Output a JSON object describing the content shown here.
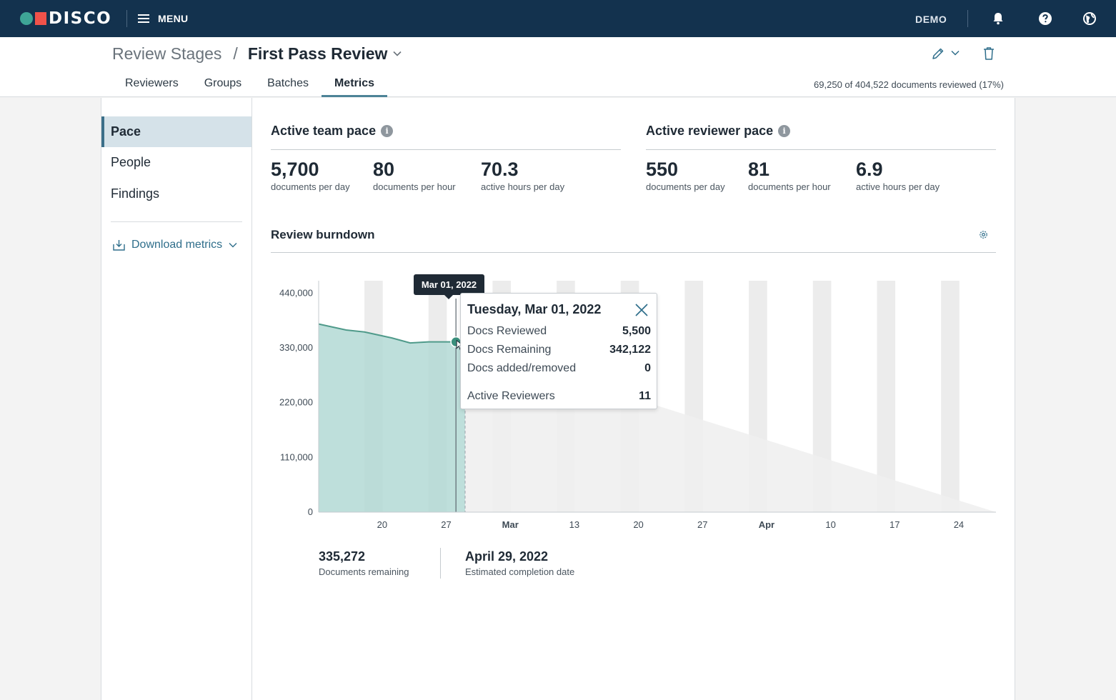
{
  "topbar": {
    "brand": "DISCO",
    "menu_label": "MENU",
    "account": "DEMO",
    "icons": [
      "bell-icon",
      "help-icon",
      "globe-icon"
    ]
  },
  "header": {
    "breadcrumb_parent": "Review Stages",
    "breadcrumb_separator": "/",
    "breadcrumb_current": "First Pass Review",
    "tabs": [
      {
        "label": "Reviewers",
        "active": false
      },
      {
        "label": "Groups",
        "active": false
      },
      {
        "label": "Batches",
        "active": false
      },
      {
        "label": "Metrics",
        "active": true
      }
    ],
    "progress": "69,250 of 404,522 documents reviewed (17%)"
  },
  "sidebar": {
    "items": [
      {
        "label": "Pace",
        "active": true
      },
      {
        "label": "People",
        "active": false
      },
      {
        "label": "Findings",
        "active": false
      }
    ],
    "download_label": "Download metrics"
  },
  "team_pace": {
    "title": "Active team pace",
    "stats": [
      {
        "value": "5,700",
        "caption": "documents per day"
      },
      {
        "value": "80",
        "caption": "documents per hour"
      },
      {
        "value": "70.3",
        "caption": "active hours per day"
      }
    ]
  },
  "reviewer_pace": {
    "title": "Active reviewer pace",
    "stats": [
      {
        "value": "550",
        "caption": "documents per day"
      },
      {
        "value": "81",
        "caption": "documents per hour"
      },
      {
        "value": "6.9",
        "caption": "active hours per day"
      }
    ]
  },
  "burndown": {
    "title": "Review burndown",
    "marker_label": "Mar 01, 2022",
    "tooltip": {
      "title": "Tuesday, Mar 01, 2022",
      "rows": [
        {
          "label": "Docs Reviewed",
          "value": "5,500"
        },
        {
          "label": "Docs Remaining",
          "value": "342,122"
        },
        {
          "label": "Docs added/removed",
          "value": "0"
        },
        {
          "label": "Active Reviewers",
          "value": "11"
        }
      ]
    },
    "summary": [
      {
        "value": "335,272",
        "caption": "Documents remaining"
      },
      {
        "value": "April 29, 2022",
        "caption": "Estimated completion date"
      }
    ]
  },
  "chart_data": {
    "type": "area",
    "title": "Review burndown",
    "y_ticks": [
      "440,000",
      "330,000",
      "220,000",
      "110,000",
      "0"
    ],
    "y_tick_values": [
      440000,
      330000,
      220000,
      110000,
      0
    ],
    "ylim": [
      0,
      465000
    ],
    "x_ticks": [
      {
        "label": "20",
        "date": "2022-02-20",
        "bold": false
      },
      {
        "label": "27",
        "date": "2022-02-27",
        "bold": false
      },
      {
        "label": "Mar",
        "date": "2022-03-06",
        "bold": true
      },
      {
        "label": "13",
        "date": "2022-03-13",
        "bold": false
      },
      {
        "label": "20",
        "date": "2022-03-20",
        "bold": false
      },
      {
        "label": "27",
        "date": "2022-03-27",
        "bold": false
      },
      {
        "label": "Apr",
        "date": "2022-04-03",
        "bold": true
      },
      {
        "label": "10",
        "date": "2022-04-10",
        "bold": false
      },
      {
        "label": "17",
        "date": "2022-04-17",
        "bold": false
      },
      {
        "label": "24",
        "date": "2022-04-24",
        "bold": false
      }
    ],
    "xlim": [
      "2022-02-14",
      "2022-04-29"
    ],
    "series": [
      {
        "kind": "actual",
        "color": "#4f9a8a",
        "fill": "#b3d9d5",
        "x": [
          "2022-02-14",
          "2022-02-17",
          "2022-02-19",
          "2022-02-22",
          "2022-02-24",
          "2022-02-26",
          "2022-03-01",
          "2022-03-02"
        ],
        "y": [
          378000,
          366000,
          362000,
          350000,
          340000,
          342122,
          342122,
          335272
        ]
      },
      {
        "kind": "projection",
        "fill": "#f0f0f0",
        "x": [
          "2022-03-02",
          "2022-04-29"
        ],
        "y": [
          335272,
          0
        ]
      }
    ],
    "highlight": {
      "date": "2022-03-01",
      "y": 342122,
      "color": "#3a8f7c"
    },
    "weekend_bands": true,
    "grid": false
  }
}
